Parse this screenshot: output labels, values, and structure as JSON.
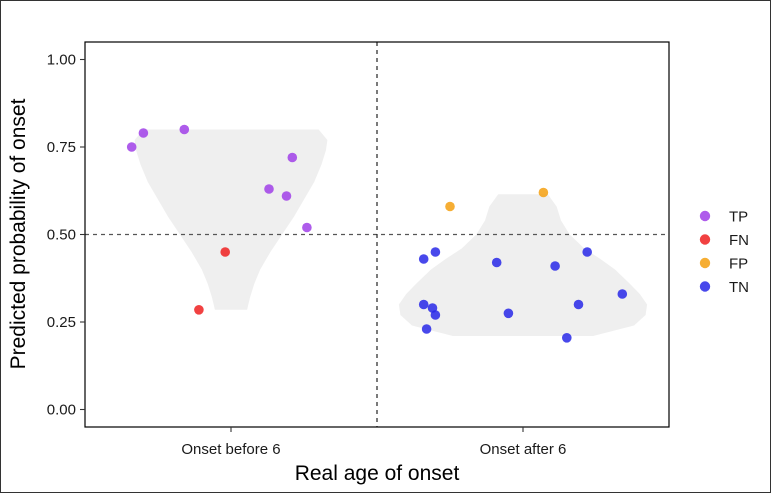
{
  "chart_data": {
    "type": "scatter",
    "title": "",
    "xlabel": "Real age of onset",
    "ylabel": "Predicted probability of onset",
    "categories": [
      "Onset before 6",
      "Onset after 6"
    ],
    "ylim": [
      -0.05,
      1.05
    ],
    "yticks": [
      0.0,
      0.25,
      0.5,
      0.75,
      1.0
    ],
    "ytick_labels": [
      "0.00",
      "0.25",
      "0.50",
      "0.75",
      "1.00"
    ],
    "threshold": 0.5,
    "grid": false,
    "legend_position": "right",
    "legend": [
      {
        "key": "TP",
        "label": "TP",
        "color": "#a040e8"
      },
      {
        "key": "FN",
        "label": "FN",
        "color": "#ee2020"
      },
      {
        "key": "FP",
        "label": "FP",
        "color": "#f5a010"
      },
      {
        "key": "TN",
        "label": "TN",
        "color": "#2828e8"
      }
    ],
    "violins": [
      {
        "group": "Onset before 6",
        "ymin": 0.285,
        "ymax": 0.8,
        "color": "#efefef",
        "profile": [
          [
            0.285,
            0.11
          ],
          [
            0.32,
            0.13
          ],
          [
            0.36,
            0.16
          ],
          [
            0.4,
            0.2
          ],
          [
            0.45,
            0.27
          ],
          [
            0.5,
            0.35
          ],
          [
            0.55,
            0.43
          ],
          [
            0.6,
            0.5
          ],
          [
            0.65,
            0.57
          ],
          [
            0.7,
            0.62
          ],
          [
            0.74,
            0.65
          ],
          [
            0.77,
            0.66
          ],
          [
            0.8,
            0.6
          ]
        ]
      },
      {
        "group": "Onset after 6",
        "ymin": 0.21,
        "ymax": 0.615,
        "color": "#efefef",
        "profile": [
          [
            0.21,
            0.48
          ],
          [
            0.24,
            0.76
          ],
          [
            0.27,
            0.84
          ],
          [
            0.3,
            0.85
          ],
          [
            0.33,
            0.8
          ],
          [
            0.36,
            0.73
          ],
          [
            0.4,
            0.63
          ],
          [
            0.43,
            0.53
          ],
          [
            0.46,
            0.42
          ],
          [
            0.5,
            0.32
          ],
          [
            0.54,
            0.26
          ],
          [
            0.58,
            0.23
          ],
          [
            0.615,
            0.17
          ]
        ]
      }
    ],
    "points": [
      {
        "group": "Onset before 6",
        "dx": -0.34,
        "y": 0.75,
        "cls": "TP"
      },
      {
        "group": "Onset before 6",
        "dx": -0.3,
        "y": 0.79,
        "cls": "TP"
      },
      {
        "group": "Onset before 6",
        "dx": -0.16,
        "y": 0.8,
        "cls": "TP"
      },
      {
        "group": "Onset before 6",
        "dx": 0.21,
        "y": 0.72,
        "cls": "TP"
      },
      {
        "group": "Onset before 6",
        "dx": 0.13,
        "y": 0.63,
        "cls": "TP"
      },
      {
        "group": "Onset before 6",
        "dx": 0.19,
        "y": 0.61,
        "cls": "TP"
      },
      {
        "group": "Onset before 6",
        "dx": 0.26,
        "y": 0.52,
        "cls": "TP"
      },
      {
        "group": "Onset before 6",
        "dx": -0.02,
        "y": 0.45,
        "cls": "FN"
      },
      {
        "group": "Onset before 6",
        "dx": -0.11,
        "y": 0.285,
        "cls": "FN"
      },
      {
        "group": "Onset after 6",
        "dx": -0.25,
        "y": 0.58,
        "cls": "FP"
      },
      {
        "group": "Onset after 6",
        "dx": 0.07,
        "y": 0.62,
        "cls": "FP"
      },
      {
        "group": "Onset after 6",
        "dx": -0.34,
        "y": 0.43,
        "cls": "TN"
      },
      {
        "group": "Onset after 6",
        "dx": -0.3,
        "y": 0.45,
        "cls": "TN"
      },
      {
        "group": "Onset after 6",
        "dx": -0.09,
        "y": 0.42,
        "cls": "TN"
      },
      {
        "group": "Onset after 6",
        "dx": 0.11,
        "y": 0.41,
        "cls": "TN"
      },
      {
        "group": "Onset after 6",
        "dx": 0.22,
        "y": 0.45,
        "cls": "TN"
      },
      {
        "group": "Onset after 6",
        "dx": 0.34,
        "y": 0.33,
        "cls": "TN"
      },
      {
        "group": "Onset after 6",
        "dx": 0.19,
        "y": 0.3,
        "cls": "TN"
      },
      {
        "group": "Onset after 6",
        "dx": -0.34,
        "y": 0.3,
        "cls": "TN"
      },
      {
        "group": "Onset after 6",
        "dx": -0.31,
        "y": 0.29,
        "cls": "TN"
      },
      {
        "group": "Onset after 6",
        "dx": -0.3,
        "y": 0.27,
        "cls": "TN"
      },
      {
        "group": "Onset after 6",
        "dx": -0.05,
        "y": 0.275,
        "cls": "TN"
      },
      {
        "group": "Onset after 6",
        "dx": -0.33,
        "y": 0.23,
        "cls": "TN"
      },
      {
        "group": "Onset after 6",
        "dx": 0.15,
        "y": 0.205,
        "cls": "TN"
      }
    ]
  }
}
